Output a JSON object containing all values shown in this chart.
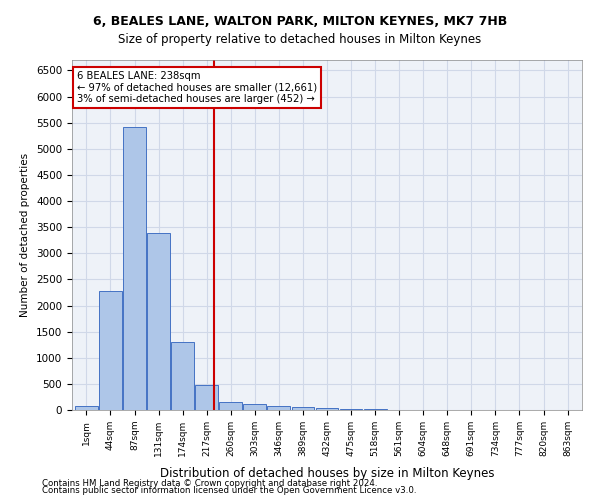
{
  "title": "6, BEALES LANE, WALTON PARK, MILTON KEYNES, MK7 7HB",
  "subtitle": "Size of property relative to detached houses in Milton Keynes",
  "xlabel": "Distribution of detached houses by size in Milton Keynes",
  "ylabel": "Number of detached properties",
  "footnote1": "Contains HM Land Registry data © Crown copyright and database right 2024.",
  "footnote2": "Contains public sector information licensed under the Open Government Licence v3.0.",
  "bin_labels": [
    "1sqm",
    "44sqm",
    "87sqm",
    "131sqm",
    "174sqm",
    "217sqm",
    "260sqm",
    "303sqm",
    "346sqm",
    "389sqm",
    "432sqm",
    "475sqm",
    "518sqm",
    "561sqm",
    "604sqm",
    "648sqm",
    "691sqm",
    "734sqm",
    "777sqm",
    "820sqm",
    "863sqm"
  ],
  "bar_values": [
    75,
    2270,
    5420,
    3380,
    1310,
    480,
    155,
    110,
    80,
    50,
    30,
    20,
    10,
    5,
    3,
    2,
    1,
    1,
    0,
    0,
    0
  ],
  "bar_color": "#aec6e8",
  "bar_edge_color": "#4472c4",
  "grid_color": "#d0d8e8",
  "background_color": "#eef2f8",
  "vline_x": 5.3,
  "vline_color": "#cc0000",
  "annotation_text": "6 BEALES LANE: 238sqm\n← 97% of detached houses are smaller (12,661)\n3% of semi-detached houses are larger (452) →",
  "annotation_box_color": "#ffffff",
  "annotation_box_edge": "#cc0000",
  "ylim": [
    0,
    6700
  ],
  "yticks": [
    0,
    500,
    1000,
    1500,
    2000,
    2500,
    3000,
    3500,
    4000,
    4500,
    5000,
    5500,
    6000,
    6500
  ]
}
